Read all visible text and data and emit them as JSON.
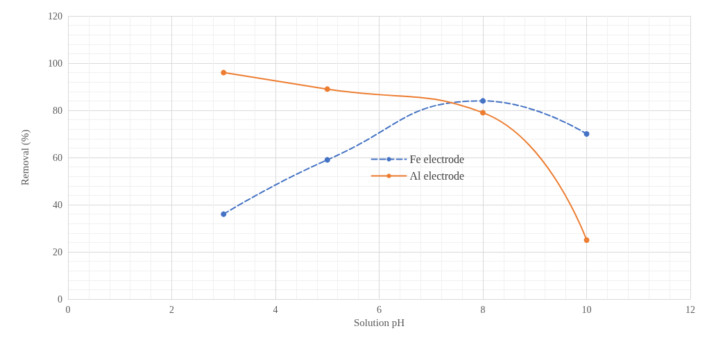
{
  "chart_data": {
    "type": "line",
    "xlabel": "Solution pH",
    "ylabel": "Removal (%)",
    "x": [
      3,
      5,
      8,
      10
    ],
    "series": [
      {
        "name": "Fe electrode",
        "color": "#4472c4",
        "line_style": "dashed",
        "values": [
          36,
          59,
          84,
          70
        ]
      },
      {
        "name": "Al electrode",
        "color": "#ed7d31",
        "line_style": "solid",
        "values": [
          96,
          89,
          79,
          25
        ]
      }
    ],
    "xlim": [
      0,
      12
    ],
    "xticks": [
      0,
      2,
      4,
      6,
      8,
      10,
      12
    ],
    "ylim": [
      0,
      120
    ],
    "yticks": [
      0,
      20,
      40,
      60,
      80,
      100,
      120
    ],
    "grid": true,
    "legend": "center",
    "marker": "circle"
  }
}
